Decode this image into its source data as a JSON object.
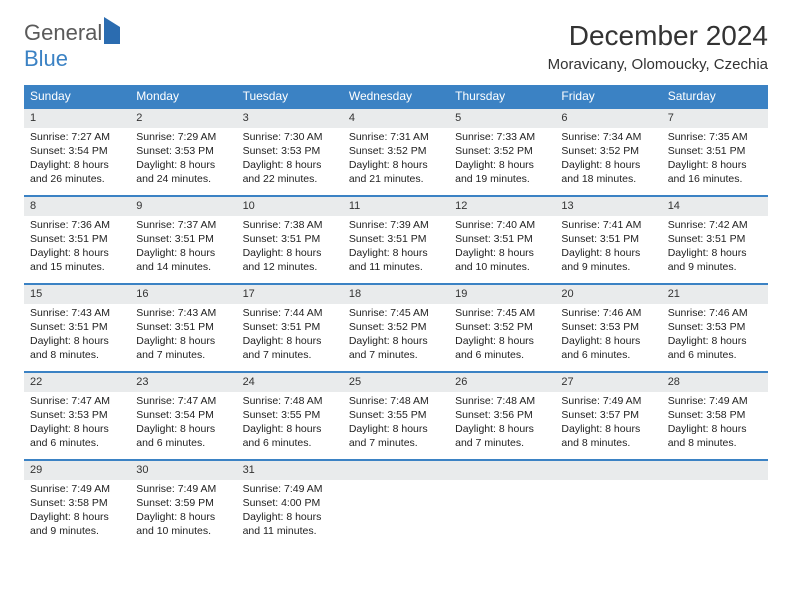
{
  "logo": {
    "part1": "General",
    "part2": "Blue"
  },
  "title": "December 2024",
  "location": "Moravicany, Olomoucky, Czechia",
  "colors": {
    "header_bg": "#3b82c4",
    "header_text": "#ffffff",
    "daynum_bg": "#e9ebec",
    "row_border": "#3b82c4",
    "page_bg": "#ffffff",
    "logo_gray": "#5a5a5a",
    "logo_blue": "#3b82c4"
  },
  "typography": {
    "title_fontsize": 28,
    "location_fontsize": 15,
    "header_fontsize": 12,
    "cell_fontsize": 10.5
  },
  "weekdays": [
    "Sunday",
    "Monday",
    "Tuesday",
    "Wednesday",
    "Thursday",
    "Friday",
    "Saturday"
  ],
  "grid_rows": 5,
  "grid_cols": 7,
  "days": [
    {
      "n": "1",
      "sr": "7:27 AM",
      "ss": "3:54 PM",
      "dl": "8 hours and 26 minutes."
    },
    {
      "n": "2",
      "sr": "7:29 AM",
      "ss": "3:53 PM",
      "dl": "8 hours and 24 minutes."
    },
    {
      "n": "3",
      "sr": "7:30 AM",
      "ss": "3:53 PM",
      "dl": "8 hours and 22 minutes."
    },
    {
      "n": "4",
      "sr": "7:31 AM",
      "ss": "3:52 PM",
      "dl": "8 hours and 21 minutes."
    },
    {
      "n": "5",
      "sr": "7:33 AM",
      "ss": "3:52 PM",
      "dl": "8 hours and 19 minutes."
    },
    {
      "n": "6",
      "sr": "7:34 AM",
      "ss": "3:52 PM",
      "dl": "8 hours and 18 minutes."
    },
    {
      "n": "7",
      "sr": "7:35 AM",
      "ss": "3:51 PM",
      "dl": "8 hours and 16 minutes."
    },
    {
      "n": "8",
      "sr": "7:36 AM",
      "ss": "3:51 PM",
      "dl": "8 hours and 15 minutes."
    },
    {
      "n": "9",
      "sr": "7:37 AM",
      "ss": "3:51 PM",
      "dl": "8 hours and 14 minutes."
    },
    {
      "n": "10",
      "sr": "7:38 AM",
      "ss": "3:51 PM",
      "dl": "8 hours and 12 minutes."
    },
    {
      "n": "11",
      "sr": "7:39 AM",
      "ss": "3:51 PM",
      "dl": "8 hours and 11 minutes."
    },
    {
      "n": "12",
      "sr": "7:40 AM",
      "ss": "3:51 PM",
      "dl": "8 hours and 10 minutes."
    },
    {
      "n": "13",
      "sr": "7:41 AM",
      "ss": "3:51 PM",
      "dl": "8 hours and 9 minutes."
    },
    {
      "n": "14",
      "sr": "7:42 AM",
      "ss": "3:51 PM",
      "dl": "8 hours and 9 minutes."
    },
    {
      "n": "15",
      "sr": "7:43 AM",
      "ss": "3:51 PM",
      "dl": "8 hours and 8 minutes."
    },
    {
      "n": "16",
      "sr": "7:43 AM",
      "ss": "3:51 PM",
      "dl": "8 hours and 7 minutes."
    },
    {
      "n": "17",
      "sr": "7:44 AM",
      "ss": "3:51 PM",
      "dl": "8 hours and 7 minutes."
    },
    {
      "n": "18",
      "sr": "7:45 AM",
      "ss": "3:52 PM",
      "dl": "8 hours and 7 minutes."
    },
    {
      "n": "19",
      "sr": "7:45 AM",
      "ss": "3:52 PM",
      "dl": "8 hours and 6 minutes."
    },
    {
      "n": "20",
      "sr": "7:46 AM",
      "ss": "3:53 PM",
      "dl": "8 hours and 6 minutes."
    },
    {
      "n": "21",
      "sr": "7:46 AM",
      "ss": "3:53 PM",
      "dl": "8 hours and 6 minutes."
    },
    {
      "n": "22",
      "sr": "7:47 AM",
      "ss": "3:53 PM",
      "dl": "8 hours and 6 minutes."
    },
    {
      "n": "23",
      "sr": "7:47 AM",
      "ss": "3:54 PM",
      "dl": "8 hours and 6 minutes."
    },
    {
      "n": "24",
      "sr": "7:48 AM",
      "ss": "3:55 PM",
      "dl": "8 hours and 6 minutes."
    },
    {
      "n": "25",
      "sr": "7:48 AM",
      "ss": "3:55 PM",
      "dl": "8 hours and 7 minutes."
    },
    {
      "n": "26",
      "sr": "7:48 AM",
      "ss": "3:56 PM",
      "dl": "8 hours and 7 minutes."
    },
    {
      "n": "27",
      "sr": "7:49 AM",
      "ss": "3:57 PM",
      "dl": "8 hours and 8 minutes."
    },
    {
      "n": "28",
      "sr": "7:49 AM",
      "ss": "3:58 PM",
      "dl": "8 hours and 8 minutes."
    },
    {
      "n": "29",
      "sr": "7:49 AM",
      "ss": "3:58 PM",
      "dl": "8 hours and 9 minutes."
    },
    {
      "n": "30",
      "sr": "7:49 AM",
      "ss": "3:59 PM",
      "dl": "8 hours and 10 minutes."
    },
    {
      "n": "31",
      "sr": "7:49 AM",
      "ss": "4:00 PM",
      "dl": "8 hours and 11 minutes."
    },
    {
      "n": "",
      "sr": "",
      "ss": "",
      "dl": "",
      "empty": true
    },
    {
      "n": "",
      "sr": "",
      "ss": "",
      "dl": "",
      "empty": true
    },
    {
      "n": "",
      "sr": "",
      "ss": "",
      "dl": "",
      "empty": true
    },
    {
      "n": "",
      "sr": "",
      "ss": "",
      "dl": "",
      "empty": true
    }
  ],
  "labels": {
    "sunrise": "Sunrise: ",
    "sunset": "Sunset: ",
    "daylight": "Daylight: "
  }
}
